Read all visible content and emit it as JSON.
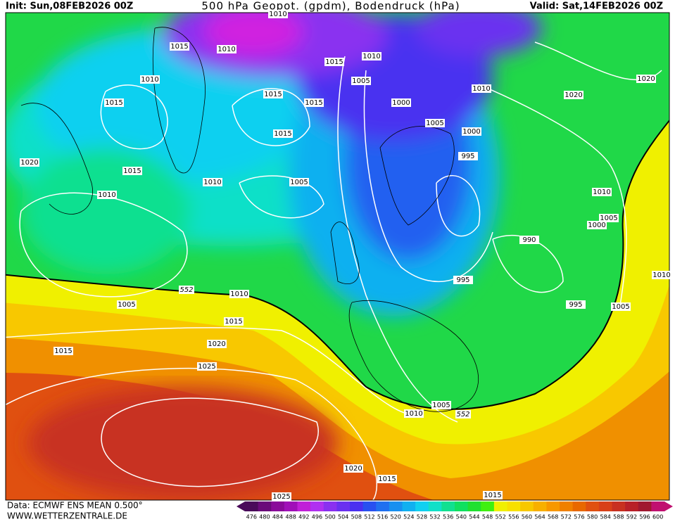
{
  "header": {
    "init": "Init: Sun,08FEB2026 00Z",
    "title": "500 hPa Geopot. (gpdm), Bodendruck (hPa)",
    "valid": "Valid: Sat,14FEB2026 00Z"
  },
  "isobar_labels": [
    "1015",
    "1010",
    "1010",
    "1015",
    "1010",
    "1005",
    "1010",
    "1015",
    "1015",
    "1015",
    "1000",
    "1015",
    "1005",
    "1000",
    "1010",
    "1020",
    "1020",
    "1020",
    "1015",
    "1010",
    "1005",
    "995",
    "1010",
    "1010",
    "1005",
    "1000",
    "990",
    "995",
    "1010",
    "1005",
    "995",
    "1005",
    "1015",
    "1020",
    "1015",
    "1025",
    "1005",
    "1010",
    "1020",
    "1015",
    "1015",
    "1025",
    "1010"
  ],
  "contour_labels": [
    "552",
    "552"
  ],
  "legend": {
    "values": [
      476,
      480,
      484,
      488,
      492,
      496,
      500,
      504,
      508,
      512,
      516,
      520,
      524,
      528,
      532,
      536,
      540,
      544,
      548,
      552,
      556,
      560,
      564,
      568,
      572,
      576,
      580,
      584,
      588,
      592,
      596,
      600
    ],
    "colors": [
      "#4a0a5a",
      "#6a0a7a",
      "#8a0a9a",
      "#a010b8",
      "#c020d8",
      "#b030f0",
      "#8a30f0",
      "#6a30f0",
      "#4a30f0",
      "#2850f0",
      "#2070f0",
      "#1890f0",
      "#10b0f0",
      "#10d0f0",
      "#10e0c8",
      "#10e090",
      "#10e060",
      "#20e030",
      "#40f010",
      "#f0f000",
      "#f8e000",
      "#f8c800",
      "#f8b000",
      "#f89800",
      "#f08000",
      "#e86800",
      "#e05010",
      "#d84018",
      "#c83020",
      "#b82028",
      "#a01830",
      "#c01070"
    ]
  },
  "footer": {
    "source": "Data: ECMWF ENS MEAN 0.500°",
    "site": "WWW.WETTERZENTRALE.DE"
  }
}
